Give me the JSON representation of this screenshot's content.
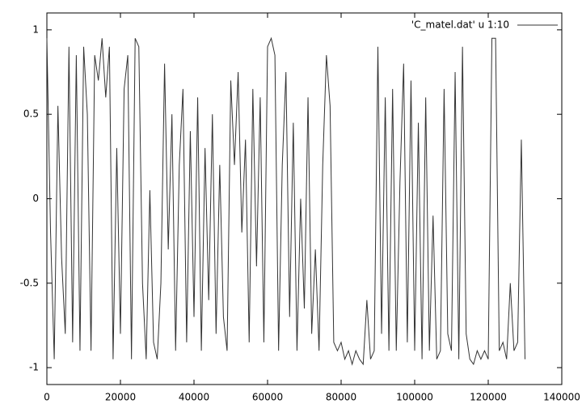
{
  "chart_data": {
    "type": "line",
    "x": [
      0,
      1000,
      2000,
      3000,
      4000,
      5000,
      6000,
      7000,
      8000,
      9000,
      10000,
      11000,
      12000,
      13000,
      14000,
      15000,
      16000,
      17000,
      18000,
      19000,
      20000,
      21000,
      22000,
      23000,
      24000,
      25000,
      26000,
      27000,
      28000,
      29000,
      30000,
      31000,
      32000,
      33000,
      34000,
      35000,
      36000,
      37000,
      38000,
      39000,
      40000,
      41000,
      42000,
      43000,
      44000,
      45000,
      46000,
      47000,
      48000,
      49000,
      50000,
      51000,
      52000,
      53000,
      54000,
      55000,
      56000,
      57000,
      58000,
      59000,
      60000,
      61000,
      62000,
      63000,
      64000,
      65000,
      66000,
      67000,
      68000,
      69000,
      70000,
      71000,
      72000,
      73000,
      74000,
      75000,
      76000,
      77000,
      78000,
      79000,
      80000,
      81000,
      82000,
      83000,
      84000,
      85000,
      86000,
      87000,
      88000,
      89000,
      90000,
      91000,
      92000,
      93000,
      94000,
      95000,
      96000,
      97000,
      98000,
      99000,
      100000,
      101000,
      102000,
      103000,
      104000,
      105000,
      106000,
      107000,
      108000,
      109000,
      110000,
      111000,
      112000,
      113000,
      114000,
      115000,
      116000,
      117000,
      118000,
      119000,
      120000,
      121000,
      122000,
      123000,
      124000,
      125000,
      126000,
      127000,
      128000,
      129000,
      130000
    ],
    "series": [
      {
        "name": "'C_matel.dat' u 1:10",
        "color": "#333333",
        "values": [
          0.95,
          -0.2,
          -0.95,
          0.55,
          -0.35,
          -0.8,
          0.9,
          -0.85,
          0.85,
          -0.9,
          0.9,
          0.5,
          -0.9,
          0.85,
          0.7,
          0.95,
          0.6,
          0.9,
          -0.95,
          0.3,
          -0.8,
          0.65,
          0.85,
          -0.95,
          0.95,
          0.9,
          -0.5,
          -0.95,
          0.05,
          -0.85,
          -0.95,
          -0.5,
          0.8,
          -0.3,
          0.5,
          -0.9,
          0.2,
          0.65,
          -0.85,
          0.4,
          -0.7,
          0.6,
          -0.9,
          0.3,
          -0.6,
          0.5,
          -0.8,
          0.2,
          -0.7,
          -0.9,
          0.7,
          0.2,
          0.75,
          -0.2,
          0.35,
          -0.85,
          0.65,
          -0.4,
          0.6,
          -0.85,
          0.9,
          0.95,
          0.85,
          -0.9,
          0.2,
          0.75,
          -0.7,
          0.45,
          -0.9,
          0.0,
          -0.65,
          0.6,
          -0.8,
          -0.3,
          -0.9,
          0.2,
          0.85,
          0.55,
          -0.85,
          -0.9,
          -0.85,
          -0.95,
          -0.9,
          -0.98,
          -0.9,
          -0.95,
          -0.98,
          -0.6,
          -0.95,
          -0.9,
          0.9,
          -0.8,
          0.6,
          -0.9,
          0.65,
          -0.9,
          0.1,
          0.8,
          -0.85,
          0.7,
          -0.9,
          0.45,
          -0.95,
          0.6,
          -0.9,
          -0.1,
          -0.95,
          -0.9,
          0.65,
          -0.8,
          -0.9,
          0.75,
          -0.95,
          0.9,
          -0.8,
          -0.95,
          -0.98,
          -0.9,
          -0.95,
          -0.9,
          -0.95,
          0.95,
          0.95,
          -0.9,
          -0.85,
          -0.95,
          -0.5,
          -0.9,
          -0.85,
          0.35,
          -0.95
        ]
      }
    ],
    "xlim": [
      0,
      140000
    ],
    "xticks": [
      0,
      20000,
      40000,
      60000,
      80000,
      100000,
      120000,
      140000
    ],
    "ylim": [
      -1.1,
      1.1
    ],
    "yticks": [
      -1,
      -0.5,
      0,
      0.5,
      1
    ],
    "grid": false,
    "legend": "top-right"
  }
}
